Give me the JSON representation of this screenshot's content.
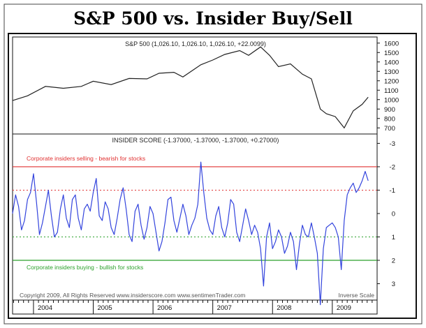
{
  "title": "S&P 500 vs. Insider Buy/Sell",
  "chart_data": [
    {
      "type": "line",
      "label": "S&P 500 (1,026.10, 1,026.10, 1,026.10, +22.0099)",
      "ylim": [
        650,
        1650
      ],
      "yticks": [
        700,
        800,
        900,
        1000,
        1100,
        1200,
        1300,
        1400,
        1500,
        1600
      ],
      "ytick_labels": [
        "700",
        "800",
        "900",
        "1000",
        "1100",
        "1200",
        "1300",
        "1400",
        "1500",
        "1600"
      ],
      "x": [
        2003.65,
        2003.9,
        2004.2,
        2004.5,
        2004.8,
        2005.0,
        2005.3,
        2005.6,
        2005.9,
        2006.1,
        2006.35,
        2006.5,
        2006.8,
        2007.0,
        2007.2,
        2007.45,
        2007.6,
        2007.8,
        2007.95,
        2008.1,
        2008.3,
        2008.5,
        2008.65,
        2008.8,
        2008.9,
        2009.05,
        2009.2,
        2009.35,
        2009.5,
        2009.6
      ],
      "values": [
        990,
        1040,
        1140,
        1120,
        1140,
        1195,
        1160,
        1225,
        1220,
        1280,
        1290,
        1240,
        1370,
        1420,
        1480,
        1520,
        1470,
        1560,
        1470,
        1350,
        1380,
        1270,
        1220,
        900,
        850,
        820,
        700,
        880,
        950,
        1026
      ]
    },
    {
      "type": "line",
      "label": "INSIDER SCORE (-1.37000, -1.37000, -1.37000, +0.27000)",
      "inverse_scale": true,
      "ylim": [
        3.7,
        -3.4
      ],
      "yticks": [
        -3,
        -2,
        -1,
        0,
        1,
        2,
        3
      ],
      "ytick_labels": [
        "-3",
        "-2",
        "-1",
        "0",
        "1",
        "2",
        "3"
      ],
      "x": [
        2003.65,
        2003.7,
        2003.75,
        2003.8,
        2003.85,
        2003.9,
        2003.95,
        2004.0,
        2004.05,
        2004.1,
        2004.15,
        2004.2,
        2004.25,
        2004.3,
        2004.35,
        2004.4,
        2004.45,
        2004.5,
        2004.55,
        2004.6,
        2004.65,
        2004.7,
        2004.75,
        2004.8,
        2004.85,
        2004.9,
        2004.95,
        2005.0,
        2005.05,
        2005.1,
        2005.15,
        2005.2,
        2005.25,
        2005.3,
        2005.35,
        2005.4,
        2005.45,
        2005.5,
        2005.55,
        2005.6,
        2005.65,
        2005.7,
        2005.75,
        2005.8,
        2005.85,
        2005.9,
        2005.95,
        2006.0,
        2006.05,
        2006.1,
        2006.15,
        2006.2,
        2006.25,
        2006.3,
        2006.35,
        2006.4,
        2006.45,
        2006.5,
        2006.55,
        2006.6,
        2006.65,
        2006.7,
        2006.75,
        2006.8,
        2006.85,
        2006.9,
        2006.95,
        2007.0,
        2007.05,
        2007.1,
        2007.15,
        2007.2,
        2007.25,
        2007.3,
        2007.35,
        2007.4,
        2007.45,
        2007.5,
        2007.55,
        2007.6,
        2007.65,
        2007.7,
        2007.75,
        2007.8,
        2007.85,
        2007.9,
        2007.95,
        2008.0,
        2008.05,
        2008.1,
        2008.15,
        2008.2,
        2008.25,
        2008.3,
        2008.35,
        2008.4,
        2008.45,
        2008.5,
        2008.55,
        2008.6,
        2008.65,
        2008.7,
        2008.75,
        2008.8,
        2008.85,
        2008.9,
        2008.95,
        2009.0,
        2009.05,
        2009.1,
        2009.15,
        2009.2,
        2009.25,
        2009.3,
        2009.35,
        2009.4,
        2009.45,
        2009.5,
        2009.55,
        2009.6
      ],
      "values": [
        0.0,
        -0.8,
        -0.3,
        0.7,
        0.3,
        -0.6,
        -0.9,
        -1.7,
        -0.5,
        0.9,
        0.4,
        -0.3,
        -1.0,
        0.1,
        1.0,
        0.8,
        -0.2,
        -0.8,
        0.2,
        0.6,
        -0.6,
        -0.8,
        0.2,
        0.7,
        -0.2,
        -0.4,
        -0.1,
        -0.9,
        -1.5,
        0.1,
        0.3,
        -0.5,
        -0.2,
        0.6,
        0.9,
        0.2,
        -0.6,
        -1.1,
        -0.2,
        0.9,
        1.2,
        -0.1,
        -0.4,
        0.5,
        1.1,
        0.6,
        -0.3,
        0.0,
        0.8,
        1.6,
        1.2,
        0.4,
        -0.6,
        -0.7,
        0.3,
        0.8,
        0.2,
        -0.4,
        0.1,
        0.9,
        0.5,
        0.2,
        -0.4,
        -2.2,
        -0.9,
        0.2,
        0.7,
        0.9,
        0.1,
        -0.3,
        0.6,
        1.0,
        0.4,
        -0.6,
        -0.4,
        0.8,
        1.2,
        0.5,
        -0.2,
        0.3,
        0.9,
        0.5,
        0.8,
        1.5,
        3.1,
        1.0,
        0.4,
        1.5,
        1.2,
        0.7,
        1.0,
        1.7,
        1.4,
        0.8,
        1.2,
        2.4,
        1.3,
        0.5,
        0.9,
        1.0,
        0.4,
        1.0,
        1.7,
        3.9,
        1.5,
        0.6,
        0.5,
        0.4,
        0.6,
        1.0,
        2.4,
        0.3,
        -0.8,
        -1.1,
        -1.3,
        -0.9,
        -1.1,
        -1.4,
        -1.8,
        -1.4
      ]
    }
  ],
  "xlim": [
    2003.65,
    2009.75
  ],
  "year_labels": [
    "2004",
    "2005",
    "2006",
    "2007",
    "2008",
    "2009"
  ],
  "year_starts": [
    2004,
    2005,
    2006,
    2007,
    2008,
    2009
  ],
  "annotations": {
    "sell_text": "Corporate insiders selling - bearish for stocks",
    "buy_text": "Corporate insiders buying - bullish for stocks",
    "sell_level": -2,
    "sell_dotted": -1,
    "buy_level": 2,
    "buy_dotted": 1,
    "copyright": "Copyright 2009, All Rights Reserved  www.insiderscore.com  www.sentimenTrader.com",
    "inverse": "Inverse Scale"
  },
  "colors": {
    "sp_line": "#222222",
    "score_line": "#3344dd",
    "sell": "#e03030",
    "buy": "#2aa02a",
    "frame": "#111111"
  }
}
